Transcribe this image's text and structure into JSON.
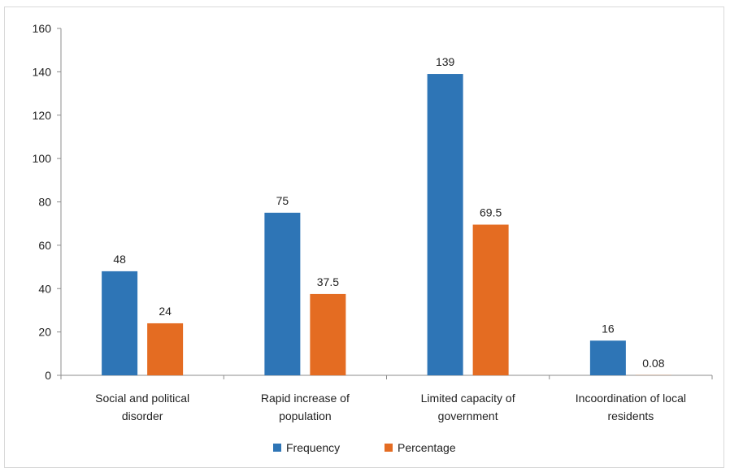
{
  "chart_data": {
    "type": "bar",
    "categories": [
      [
        "Social and political",
        "disorder"
      ],
      [
        "Rapid increase of",
        "population"
      ],
      [
        "Limited capacity of",
        "government"
      ],
      [
        "Incoordination of local",
        "residents"
      ]
    ],
    "series": [
      {
        "name": "Frequency",
        "color": "#2e75b6",
        "values": [
          48,
          75,
          139,
          16
        ],
        "labels": [
          "48",
          "75",
          "139",
          "16"
        ]
      },
      {
        "name": "Percentage",
        "color": "#e46c22",
        "values": [
          24,
          37.5,
          69.5,
          0.08
        ],
        "labels": [
          "24",
          "37.5",
          "69.5",
          "0.08"
        ]
      }
    ],
    "ylim": [
      0,
      160
    ],
    "yticks": [
      0,
      20,
      40,
      60,
      80,
      100,
      120,
      140,
      160
    ],
    "legend_position": "bottom",
    "grid": false
  }
}
